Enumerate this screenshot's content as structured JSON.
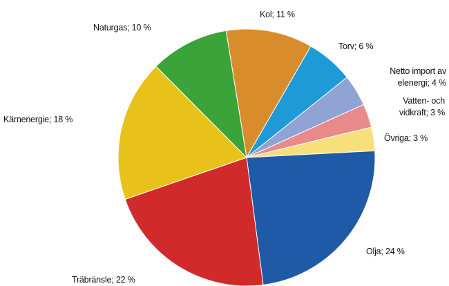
{
  "chart_data": {
    "type": "pie",
    "values": [
      11,
      6,
      4,
      3,
      3,
      24,
      22,
      18,
      10
    ],
    "value_labels": [
      "Kol; 11 %",
      "Torv; 6 %",
      "Netto import av\nelenergi; 4 %",
      "Vatten- och\nvidkraft; 3 %",
      "Övriga; 3 %",
      "Olja; 24 %",
      "Träbränsle; 22 %",
      "Kärnenergie; 18 %",
      "Naturgas; 10 %"
    ],
    "colors": [
      "#d98c2c",
      "#1e9ad6",
      "#8fa3d4",
      "#e88a8a",
      "#f7e07a",
      "#1f5aa6",
      "#d02a2a",
      "#e8c21a",
      "#3aa33a"
    ]
  }
}
